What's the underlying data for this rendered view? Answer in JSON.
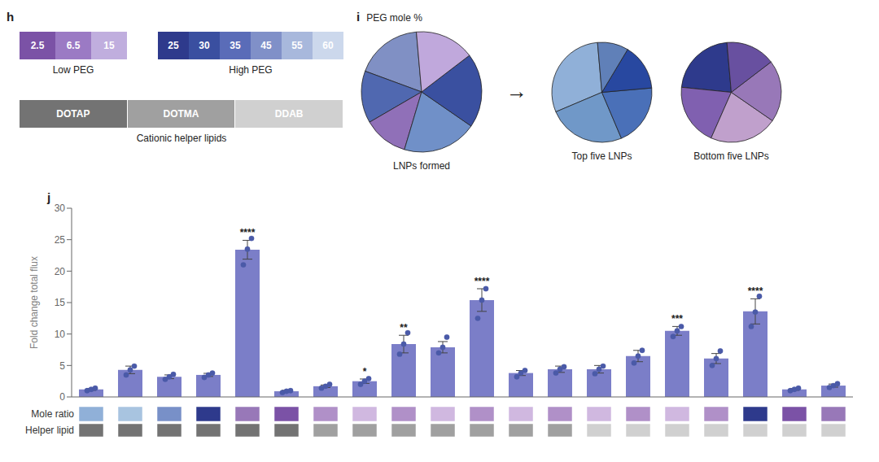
{
  "chart_data": [
    {
      "type": "swatch",
      "title": "h",
      "categories": [
        "2.5",
        "6.5",
        "15"
      ],
      "colors": [
        "#7B52A6",
        "#9B7AC4",
        "#C0AEDE"
      ],
      "xlabel": "Low PEG"
    },
    {
      "type": "swatch",
      "categories": [
        "25",
        "30",
        "35",
        "45",
        "55",
        "60"
      ],
      "colors": [
        "#2E3A8C",
        "#3A4FA0",
        "#5A6CB8",
        "#8090C8",
        "#A8B8DC",
        "#CCD8EC"
      ],
      "xlabel": "High PEG"
    },
    {
      "type": "swatch",
      "categories": [
        "DOTAP",
        "DOTMA",
        "DDAB"
      ],
      "colors": [
        "#737373",
        "#A0A0A0",
        "#D0D0D0"
      ],
      "xlabel": "Cationic helper lipids"
    },
    {
      "type": "pie",
      "title": "i",
      "subtitle": "PEG mole %",
      "values": [
        18,
        14,
        12,
        20,
        20,
        16
      ],
      "colors": [
        "#8090C4",
        "#5068B0",
        "#9070B8",
        "#7090C8",
        "#3A50A0",
        "#C0A8DC"
      ],
      "xlabel": "LNPs formed",
      "annotations": [
        "→"
      ]
    },
    {
      "type": "pie",
      "values": [
        30,
        25,
        20,
        15,
        10
      ],
      "colors": [
        "#90B0D8",
        "#7098C8",
        "#4A70B8",
        "#2848A0",
        "#6080B8"
      ],
      "xlabel": "Top five LNPs"
    },
    {
      "type": "pie",
      "values": [
        22,
        20,
        22,
        20,
        16
      ],
      "colors": [
        "#2E3A8C",
        "#8060B0",
        "#C0A0CC",
        "#9878B8",
        "#6850A0"
      ],
      "xlabel": "Bottom five LNPs"
    },
    {
      "type": "bar",
      "title": "j",
      "categories": [
        null,
        null,
        null,
        null,
        null,
        null,
        null,
        null,
        null,
        null,
        null,
        null,
        null,
        null,
        null,
        null,
        null,
        null,
        null,
        null
      ],
      "series": [
        {
          "type": "bar",
          "color": "#7B7EC8",
          "values": [
            1.2,
            4.3,
            3.2,
            3.5,
            23.4,
            0.9,
            1.7,
            2.5,
            8.4,
            7.9,
            15.4,
            3.8,
            4.4,
            4.4,
            6.5,
            10.5,
            6.1,
            13.6,
            1.2,
            1.8
          ],
          "errors": [
            0.15,
            0.6,
            0.3,
            0.25,
            1.5,
            0.15,
            0.2,
            0.35,
            1.4,
            0.9,
            1.8,
            0.4,
            0.5,
            0.6,
            0.9,
            0.7,
            0.8,
            2.0,
            0.15,
            0.25
          ]
        },
        {
          "type": "scatter",
          "color": "#4A5AA8",
          "values": [
            [
              1.0,
              1.2,
              1.4
            ],
            [
              3.5,
              4.3,
              4.9
            ],
            [
              2.8,
              3.2,
              3.6
            ],
            [
              3.1,
              3.5,
              3.8
            ],
            [
              21.0,
              23.5,
              25.2
            ],
            [
              0.7,
              0.9,
              1.0
            ],
            [
              1.4,
              1.7,
              2.0
            ],
            [
              2.0,
              2.5,
              2.9
            ],
            [
              6.8,
              8.4,
              10.2
            ],
            [
              7.0,
              7.9,
              9.5
            ],
            [
              12.5,
              15.4,
              17.2
            ],
            [
              3.2,
              3.8,
              4.2
            ],
            [
              3.8,
              4.4,
              4.8
            ],
            [
              3.7,
              4.4,
              4.9
            ],
            [
              5.4,
              6.5,
              7.4
            ],
            [
              9.6,
              10.5,
              11.2
            ],
            [
              5.0,
              6.1,
              7.3
            ],
            [
              11.2,
              13.5,
              16.0
            ],
            [
              1.0,
              1.2,
              1.4
            ],
            [
              1.5,
              1.8,
              2.1
            ]
          ]
        }
      ],
      "annotations": [
        null,
        null,
        null,
        null,
        "****",
        null,
        null,
        "*",
        "**",
        null,
        "****",
        null,
        null,
        null,
        null,
        "***",
        null,
        "****",
        null,
        null
      ],
      "ylabel": "Fold change total flux",
      "ylim": [
        0,
        30
      ],
      "yticks": [
        0,
        5,
        10,
        15,
        20,
        25,
        30
      ]
    },
    {
      "type": "strip",
      "ylabel": "Mole ratio",
      "colors": [
        "#90B0D8",
        "#A8C4E0",
        "#7890C8",
        "#2E3A8C",
        "#9878B8",
        "#7B52A6",
        "#B090C8",
        "#D0B8E0",
        "#B090C8",
        "#D0B8E0",
        "#B090C8",
        "#D0B8E0",
        "#B090C8",
        "#D0B8E0",
        "#B090C8",
        "#D0B8E0",
        "#B090C8",
        "#2E3A8C",
        "#7B52A6",
        "#9878B8"
      ]
    },
    {
      "type": "strip",
      "ylabel": "Helper lipid",
      "colors": [
        "#737373",
        "#737373",
        "#737373",
        "#737373",
        "#737373",
        "#737373",
        "#A0A0A0",
        "#A0A0A0",
        "#A0A0A0",
        "#A0A0A0",
        "#A0A0A0",
        "#A0A0A0",
        "#A0A0A0",
        "#D0D0D0",
        "#D0D0D0",
        "#D0D0D0",
        "#D0D0D0",
        "#D0D0D0",
        "#D0D0D0",
        "#D0D0D0"
      ]
    }
  ]
}
